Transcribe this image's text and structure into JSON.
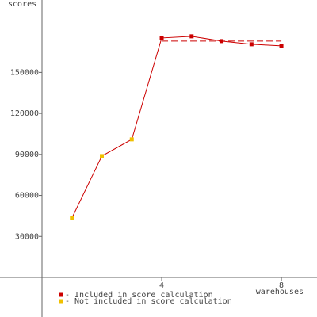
{
  "chart_data": {
    "type": "line",
    "y_label": "scores",
    "x_label": "warehouses",
    "x": [
      1,
      2,
      3,
      4,
      5,
      6,
      7,
      8
    ],
    "values": [
      43500,
      88800,
      101000,
      175200,
      176400,
      172900,
      170600,
      169400
    ],
    "included": [
      false,
      false,
      false,
      true,
      true,
      true,
      true,
      true
    ],
    "line_color": "#cc0000",
    "legend": [
      {
        "name": "- Included in score calculation",
        "color": "#cc0000"
      },
      {
        "name": "- Not included in score calculation",
        "color": "#f0c000"
      }
    ],
    "score": 172900,
    "score_x": [
      4,
      8
    ],
    "xlim": [
      0,
      9.19
    ],
    "ylim": [
      0,
      203000
    ],
    "xticks": [
      4,
      8
    ],
    "yticks": [
      30000,
      60000,
      90000,
      120000,
      150000
    ]
  }
}
